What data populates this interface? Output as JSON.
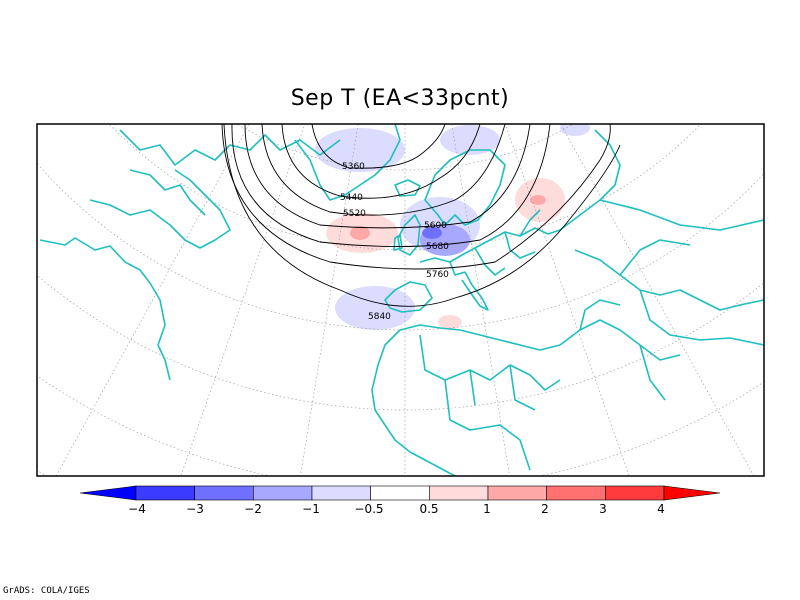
{
  "title": "Sep T (EA<33pcnt)",
  "credit": "GrADS: COLA/IGES",
  "colorbar": {
    "labels": [
      "−4",
      "−3",
      "−2",
      "−1",
      "−0.5",
      "0.5",
      "1",
      "2",
      "3",
      "4"
    ],
    "colors": [
      "#0000ff",
      "#3b3bff",
      "#7070ff",
      "#a8a8ff",
      "#dcdcff",
      "#ffffff",
      "#ffdcdc",
      "#ffa8a8",
      "#ff7070",
      "#ff3b3b",
      "#ff0000"
    ]
  },
  "contours": {
    "labels": [
      "5360",
      "5440",
      "5520",
      "5600",
      "5680",
      "5760",
      "5840"
    ],
    "color": "#000000"
  },
  "map": {
    "coast_color": "#1fbfbf",
    "grid_color": "#a0a0a0",
    "frame_color": "#000000"
  }
}
